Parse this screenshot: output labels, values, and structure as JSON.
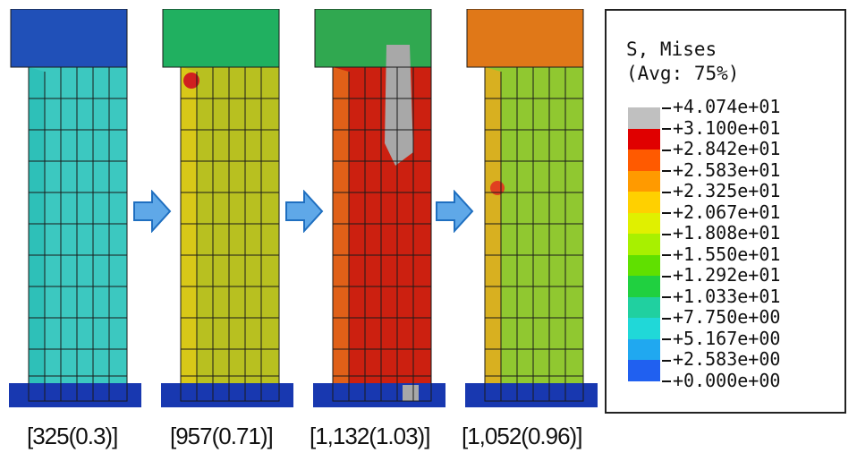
{
  "legend": {
    "title_line1": "S, Mises",
    "title_line2": "(Avg: 75%)",
    "values": [
      "+4.074e+01",
      "+3.100e+01",
      "+2.842e+01",
      "+2.583e+01",
      "+2.325e+01",
      "+2.067e+01",
      "+1.808e+01",
      "+1.550e+01",
      "+1.292e+01",
      "+1.033e+01",
      "+7.750e+00",
      "+5.167e+00",
      "+2.583e+00",
      "+0.000e+00"
    ],
    "colors": [
      "#c0c0c0",
      "#e00000",
      "#ff5a00",
      "#ff9a00",
      "#ffd000",
      "#e0f000",
      "#a8f000",
      "#60e000",
      "#20d040",
      "#20d0a0",
      "#20d8d8",
      "#20a8f0",
      "#2060f0",
      "#0000e0"
    ]
  },
  "panels": [
    {
      "caption": "[325(0.3)]",
      "main_color": "#3cc8c0",
      "face_color": "#2ec0b8",
      "side_color": "#50d0a0",
      "hotspot_color": "#40c0c0"
    },
    {
      "caption": "[957(0.71)]",
      "main_color": "#b8c020",
      "face_color": "#a8b820",
      "side_color": "#d8c818",
      "hotspot_color": "#d87020"
    },
    {
      "caption": "[1,132(1.03)]",
      "main_color": "#cc2010",
      "face_color": "#d04018",
      "side_color": "#e06018",
      "hotspot_color": "#a8a8a8"
    },
    {
      "caption": "[1,052(0.96)]",
      "main_color": "#90c830",
      "face_color": "#a8c028",
      "side_color": "#d8b020",
      "hotspot_color": "#e04020"
    }
  ],
  "arrow_color": "#3a8ad8"
}
